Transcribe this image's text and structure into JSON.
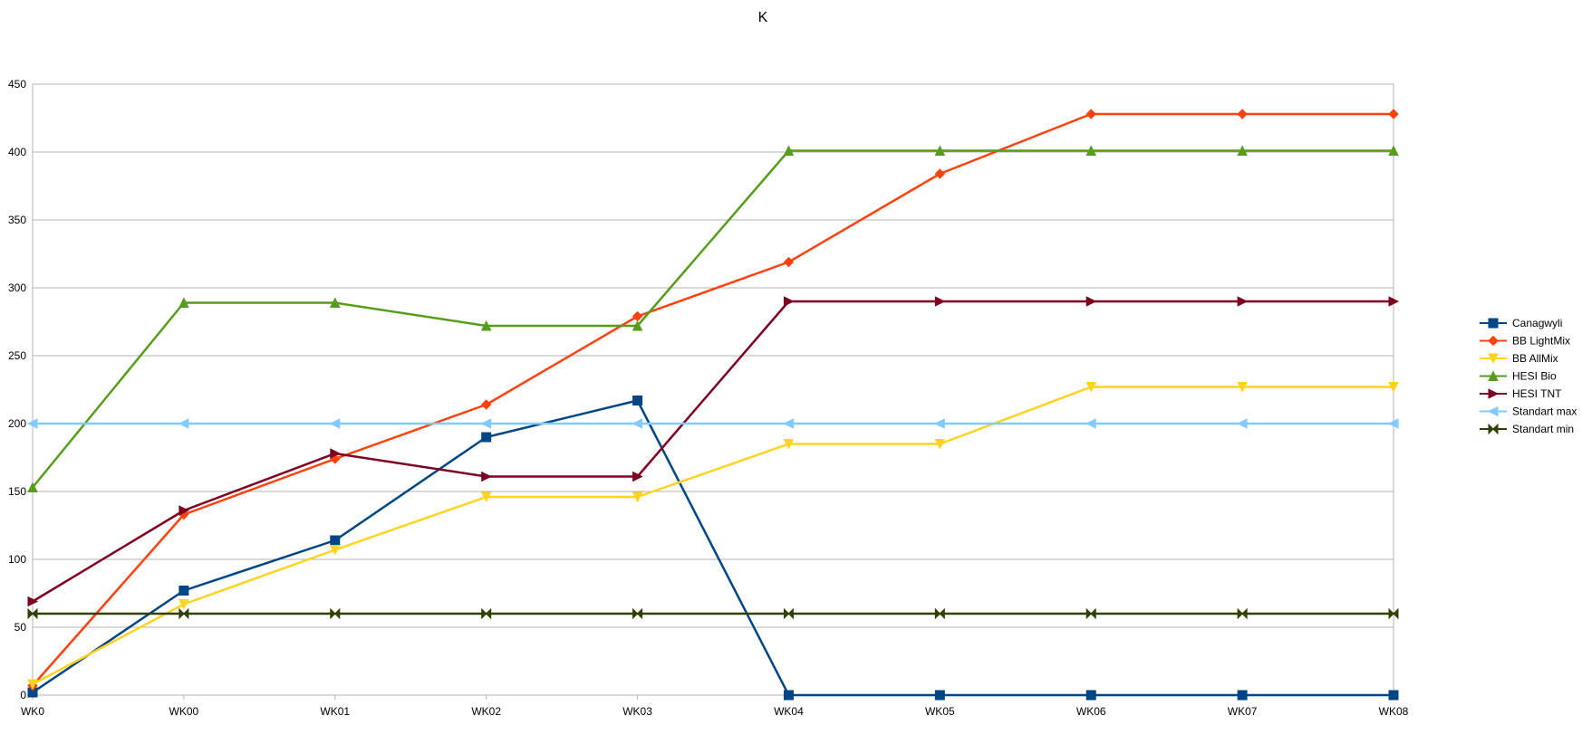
{
  "chart_data": {
    "type": "line",
    "title": "K",
    "xlabel": "",
    "ylabel": "",
    "categories": [
      "WK0",
      "WK00",
      "WK01",
      "WK02",
      "WK03",
      "WK04",
      "WK05",
      "WK06",
      "WK07",
      "WK08"
    ],
    "ylim": [
      0,
      450
    ],
    "yticks": [
      0,
      50,
      100,
      150,
      200,
      250,
      300,
      350,
      400,
      450
    ],
    "grid": true,
    "legend_position": "right",
    "series": [
      {
        "name": "Canagwyli",
        "color": "#004586",
        "marker": "square",
        "values": [
          2,
          77,
          114,
          190,
          217,
          0,
          0,
          0,
          0,
          0
        ]
      },
      {
        "name": "BB LightMix",
        "color": "#ff420e",
        "marker": "diamond",
        "values": [
          7,
          133,
          174,
          214,
          279,
          319,
          384,
          428,
          428,
          428
        ]
      },
      {
        "name": "BB AllMix",
        "color": "#ffd320",
        "marker": "triangle-down",
        "values": [
          8,
          67,
          107,
          146,
          146,
          185,
          185,
          227,
          227,
          227
        ]
      },
      {
        "name": "HESI Bio",
        "color": "#579d1c",
        "marker": "triangle-up",
        "values": [
          153,
          289,
          289,
          272,
          272,
          401,
          401,
          401,
          401,
          401
        ]
      },
      {
        "name": "HESI TNT",
        "color": "#7e0021",
        "marker": "triangle-right",
        "values": [
          69,
          136,
          178,
          161,
          161,
          290,
          290,
          290,
          290,
          290
        ]
      },
      {
        "name": "Standart max",
        "color": "#83caff",
        "marker": "triangle-left",
        "values": [
          200,
          200,
          200,
          200,
          200,
          200,
          200,
          200,
          200,
          200
        ]
      },
      {
        "name": "Standart min",
        "color": "#314004",
        "marker": "bowtie",
        "values": [
          60,
          60,
          60,
          60,
          60,
          60,
          60,
          60,
          60,
          60
        ]
      }
    ]
  }
}
